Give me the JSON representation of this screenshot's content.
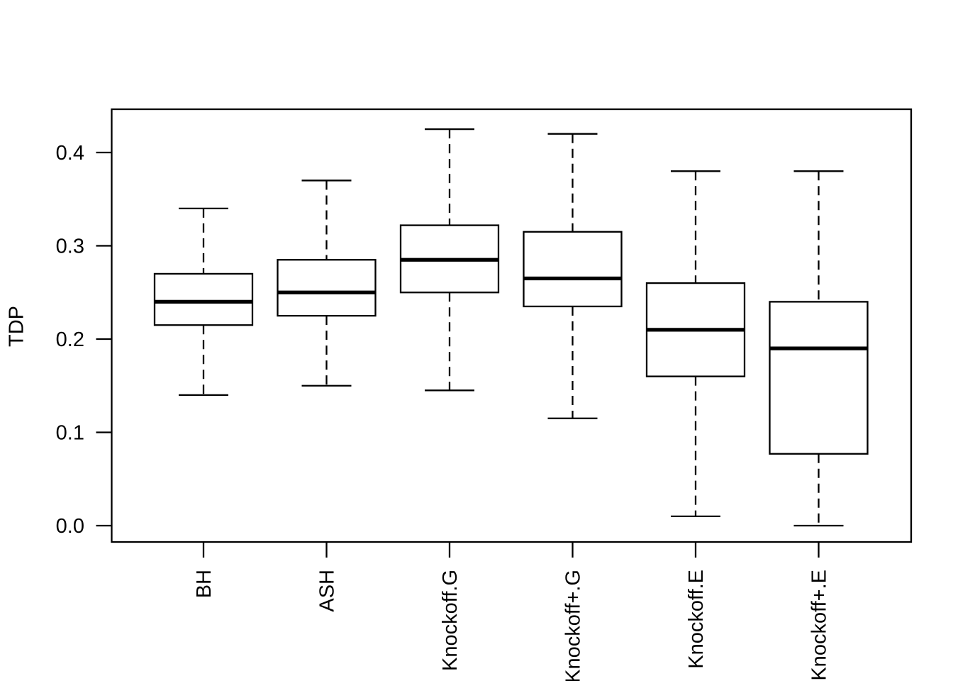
{
  "chart_data": {
    "type": "boxplot",
    "title": "",
    "xlabel": "",
    "ylabel": "TDP",
    "categories": [
      "BH",
      "ASH",
      "Knockoff.G",
      "Knockoff+.G",
      "Knockoff.E",
      "Knockoff+.E"
    ],
    "y_ticks": [
      "0.0",
      "0.1",
      "0.2",
      "0.3",
      "0.4"
    ],
    "ylim": [
      -0.0175,
      0.4465
    ],
    "grid": false,
    "legend": null,
    "series": [
      {
        "name": "BH",
        "min": 0.14,
        "q1": 0.215,
        "median": 0.24,
        "q3": 0.27,
        "max": 0.34,
        "outliers": []
      },
      {
        "name": "ASH",
        "min": 0.15,
        "q1": 0.225,
        "median": 0.25,
        "q3": 0.285,
        "max": 0.37,
        "outliers": []
      },
      {
        "name": "Knockoff.G",
        "min": 0.145,
        "q1": 0.25,
        "median": 0.285,
        "q3": 0.322,
        "max": 0.425,
        "outliers": []
      },
      {
        "name": "Knockoff+.G",
        "min": 0.115,
        "q1": 0.235,
        "median": 0.265,
        "q3": 0.315,
        "max": 0.42,
        "outliers": []
      },
      {
        "name": "Knockoff.E",
        "min": 0.01,
        "q1": 0.16,
        "median": 0.21,
        "q3": 0.26,
        "max": 0.38,
        "outliers": []
      },
      {
        "name": "Knockoff+.E",
        "min": 0.0,
        "q1": 0.077,
        "median": 0.19,
        "q3": 0.24,
        "max": 0.38,
        "outliers": []
      }
    ],
    "colors": {
      "line": "#000000",
      "background": "#ffffff",
      "box_fill": "#ffffff"
    }
  }
}
